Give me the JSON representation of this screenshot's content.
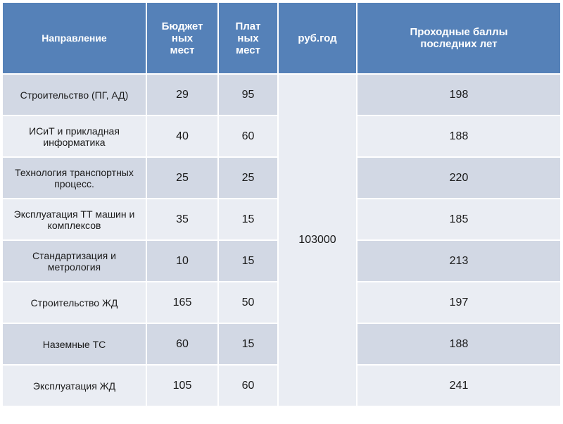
{
  "table": {
    "headers": {
      "direction": "Направление",
      "budget": "Бюджет\nных\nмест",
      "paid": "Плат\nных\nмест",
      "price": "руб.год",
      "score": "Проходные баллы\nпоследних лет"
    },
    "merged_price": "103000",
    "rows": [
      {
        "direction": "Строительство  (ПГ, АД)",
        "budget": "29",
        "paid": "95",
        "score": "198"
      },
      {
        "direction": "ИСиТ и прикладная информатика",
        "budget": "40",
        "paid": "60",
        "score": "188"
      },
      {
        "direction": "Технология транспортных процесс.",
        "budget": "25",
        "paid": "25",
        "score": "220"
      },
      {
        "direction": "Эксплуатация ТТ машин и комплексов",
        "budget": "35",
        "paid": "15",
        "score": "185"
      },
      {
        "direction": "Стандартизация и метрология",
        "budget": "10",
        "paid": "15",
        "score": "213"
      },
      {
        "direction": "Строительство ЖД",
        "budget": "165",
        "paid": "50",
        "score": "197"
      },
      {
        "direction": "Наземные ТС",
        "budget": "60",
        "paid": "15",
        "score": "188"
      },
      {
        "direction": "Эксплуатация ЖД",
        "budget": "105",
        "paid": "60",
        "score": "241"
      }
    ],
    "colors": {
      "header_bg": "#5581b8",
      "header_text": "#ffffff",
      "row_even_bg": "#d2d8e4",
      "row_odd_bg": "#eaedf3",
      "border": "#ffffff",
      "cell_text": "#1a1a1a"
    },
    "font_sizes": {
      "header": 15,
      "cell": 16,
      "direction": 14
    }
  }
}
